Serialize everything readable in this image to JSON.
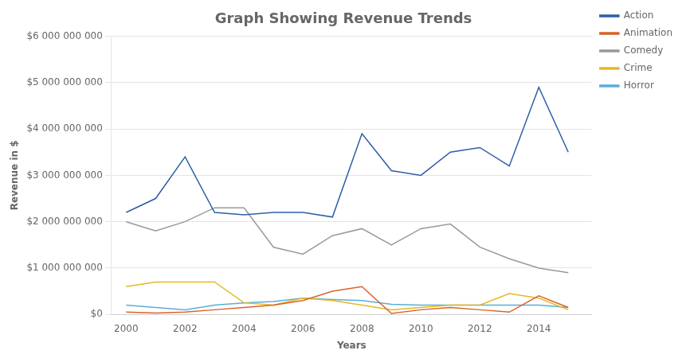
{
  "chart_data": {
    "type": "line",
    "title": "Graph Showing Revenue Trends",
    "xlabel": "Years",
    "ylabel": "Revenue in $",
    "x": [
      2000,
      2001,
      2002,
      2003,
      2004,
      2005,
      2006,
      2007,
      2008,
      2009,
      2010,
      2011,
      2012,
      2013,
      2014,
      2015
    ],
    "series": [
      {
        "name": "Action",
        "color": "#2e5ea8",
        "values": [
          2200000000,
          2500000000,
          3400000000,
          2200000000,
          2150000000,
          2200000000,
          2200000000,
          2100000000,
          3900000000,
          3100000000,
          3000000000,
          3500000000,
          3600000000,
          3200000000,
          4900000000,
          3500000000
        ]
      },
      {
        "name": "Animation",
        "color": "#d9622b",
        "values": [
          50000000,
          30000000,
          50000000,
          100000000,
          150000000,
          200000000,
          300000000,
          500000000,
          600000000,
          20000000,
          100000000,
          150000000,
          100000000,
          50000000,
          400000000,
          150000000
        ]
      },
      {
        "name": "Comedy",
        "color": "#999999",
        "values": [
          2000000000,
          1800000000,
          2000000000,
          2300000000,
          2300000000,
          1450000000,
          1300000000,
          1700000000,
          1850000000,
          1500000000,
          1850000000,
          1950000000,
          1450000000,
          1200000000,
          1000000000,
          900000000
        ]
      },
      {
        "name": "Crime",
        "color": "#e8b820",
        "values": [
          600000000,
          700000000,
          700000000,
          700000000,
          250000000,
          200000000,
          350000000,
          300000000,
          200000000,
          100000000,
          150000000,
          200000000,
          200000000,
          450000000,
          350000000,
          100000000
        ]
      },
      {
        "name": "Horror",
        "color": "#5bafd6",
        "values": [
          200000000,
          150000000,
          100000000,
          200000000,
          250000000,
          280000000,
          350000000,
          320000000,
          300000000,
          220000000,
          200000000,
          200000000,
          200000000,
          200000000,
          200000000,
          150000000
        ]
      }
    ],
    "xlim": [
      1999.5,
      2015.8
    ],
    "xticks": [
      2000,
      2002,
      2004,
      2006,
      2008,
      2010,
      2012,
      2014
    ],
    "ylim": [
      0,
      6000000000
    ],
    "yticks": [
      {
        "value": 0,
        "label": "$0"
      },
      {
        "value": 1000000000,
        "label": "$1 000 000 000"
      },
      {
        "value": 2000000000,
        "label": "$2 000 000 000"
      },
      {
        "value": 3000000000,
        "label": "$3 000 000 000"
      },
      {
        "value": 4000000000,
        "label": "$4 000 000 000"
      },
      {
        "value": 5000000000,
        "label": "$5 000 000 000"
      },
      {
        "value": 6000000000,
        "label": "$6 000 000 000"
      }
    ],
    "grid": "y",
    "legend": "right"
  }
}
